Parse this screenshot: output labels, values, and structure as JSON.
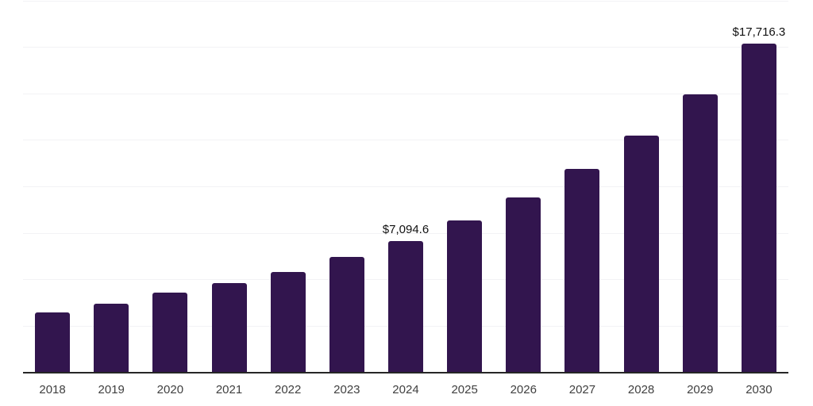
{
  "chart_data": {
    "type": "bar",
    "categories": [
      "2018",
      "2019",
      "2020",
      "2021",
      "2022",
      "2023",
      "2024",
      "2025",
      "2026",
      "2027",
      "2028",
      "2029",
      "2030"
    ],
    "values": [
      3240,
      3710,
      4310,
      4820,
      5420,
      6230,
      7094.6,
      8190,
      9420,
      10960,
      12750,
      14970,
      17716.3
    ],
    "data_labels": [
      {
        "category": "2024",
        "text": "$7,094.6"
      },
      {
        "category": "2030",
        "text": "$17,716.3"
      }
    ],
    "ylim": [
      0,
      20000
    ],
    "gridline_step": 2500,
    "grid": true,
    "legend": "none",
    "bar_color": "#32154E",
    "axis_line_color": "#262626",
    "gridline_color": "#f2f2f5",
    "tick_label_color": "#404040",
    "data_label_color": "#111111",
    "background_color": "#ffffff"
  }
}
